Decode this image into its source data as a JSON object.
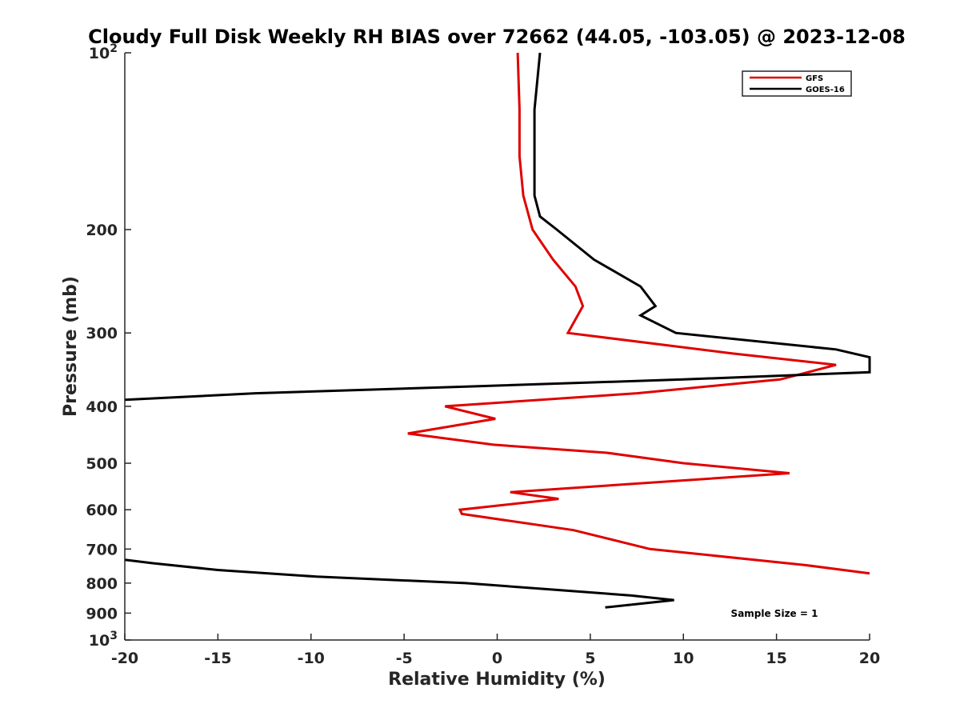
{
  "chart_data": {
    "type": "line",
    "title": "Cloudy Full Disk Weekly RH BIAS over 72662 (44.05, -103.05) @ 2023-12-08",
    "xlabel": "Relative Humidity (%)",
    "ylabel": "Pressure (mb)",
    "xlim": [
      -20,
      20
    ],
    "ylim": [
      100,
      1000
    ],
    "y_scale": "log",
    "y_reversed": true,
    "x_ticks": [
      -20,
      -15,
      -10,
      -5,
      0,
      5,
      10,
      15,
      20
    ],
    "x_tick_labels": [
      "-20",
      "-15",
      "-10",
      "-5",
      "0",
      "5",
      "10",
      "15",
      "20"
    ],
    "y_ticks": [
      100,
      200,
      300,
      400,
      500,
      600,
      700,
      800,
      900,
      1000
    ],
    "y_tick_labels": [
      {
        "base": "10",
        "exp": "2"
      },
      {
        "base": "200"
      },
      {
        "base": "300"
      },
      {
        "base": "400"
      },
      {
        "base": "500"
      },
      {
        "base": "600"
      },
      {
        "base": "700"
      },
      {
        "base": "800"
      },
      {
        "base": "900"
      },
      {
        "base": "10",
        "exp": "3"
      }
    ],
    "grid": false,
    "legend_position": "top-right",
    "series": [
      {
        "name": "GFS",
        "color": "#e00000",
        "points": [
          [
            1.1,
            100
          ],
          [
            1.2,
            125
          ],
          [
            1.2,
            150
          ],
          [
            1.4,
            175
          ],
          [
            1.9,
            200
          ],
          [
            3.0,
            225
          ],
          [
            4.2,
            250
          ],
          [
            4.6,
            270
          ],
          [
            3.8,
            300
          ],
          [
            12.6,
            325
          ],
          [
            18.2,
            340
          ],
          [
            15.2,
            360
          ],
          [
            7.5,
            380
          ],
          [
            -2.8,
            400
          ],
          [
            -0.1,
            420
          ],
          [
            -4.8,
            445
          ],
          [
            -0.2,
            465
          ],
          [
            5.9,
            480
          ],
          [
            10.0,
            500
          ],
          [
            15.7,
            520
          ],
          [
            0.7,
            560
          ],
          [
            3.3,
            575
          ],
          [
            -2.0,
            600
          ],
          [
            -1.9,
            610
          ],
          [
            4.1,
            650
          ],
          [
            8.2,
            700
          ],
          [
            16.5,
            745
          ],
          [
            20.0,
            770
          ]
        ]
      },
      {
        "name": "GOES-16",
        "color": "#000000",
        "points": [
          [
            2.3,
            100
          ],
          [
            2.0,
            125
          ],
          [
            2.0,
            150
          ],
          [
            2.0,
            175
          ],
          [
            2.3,
            190
          ],
          [
            3.2,
            200
          ],
          [
            5.2,
            225
          ],
          [
            7.7,
            250
          ],
          [
            8.5,
            270
          ],
          [
            7.7,
            280
          ],
          [
            9.6,
            300
          ],
          [
            18.2,
            320
          ],
          [
            20.0,
            330
          ],
          [
            20.0,
            350
          ],
          [
            10.0,
            360
          ],
          [
            -1.5,
            370
          ],
          [
            -13.0,
            380
          ],
          [
            -20.0,
            390
          ]
        ]
      },
      {
        "name": "",
        "color": "#000000",
        "points": [
          [
            -20.0,
            730
          ],
          [
            -18.5,
            740
          ],
          [
            -15.0,
            760
          ],
          [
            -9.7,
            780
          ],
          [
            -1.7,
            800
          ],
          [
            4.0,
            825
          ],
          [
            7.2,
            840
          ],
          [
            9.5,
            855
          ],
          [
            5.8,
            880
          ]
        ]
      }
    ],
    "legend": [
      {
        "label": "GFS",
        "color": "#e00000"
      },
      {
        "label": "GOES-16",
        "color": "#000000"
      }
    ],
    "annotation": "Sample Size = 1"
  }
}
